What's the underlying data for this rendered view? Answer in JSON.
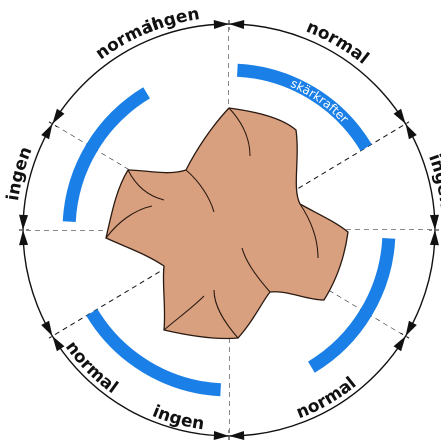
{
  "colors": {
    "force_band": "#1a7fe6",
    "cutter_fill": "#d9a07f",
    "cutter_stroke": "#2a1a12",
    "cutter_shadow": "#bf8a68",
    "ring": "#111111",
    "divider": "#111111",
    "gap": "#ffffff"
  },
  "band_label": "skärkrafter",
  "zones": [
    {
      "id": "top-left",
      "label": "ingen"
    },
    {
      "id": "top-right",
      "label": "normal"
    },
    {
      "id": "right-upper",
      "label": "ingen"
    },
    {
      "id": "right-lower",
      "label": "normal"
    },
    {
      "id": "bottom-right",
      "label": "ingen"
    },
    {
      "id": "bottom-left",
      "label": "normal"
    },
    {
      "id": "left-lower",
      "label": "ingen"
    },
    {
      "id": "left-upper",
      "label": "normal"
    }
  ]
}
